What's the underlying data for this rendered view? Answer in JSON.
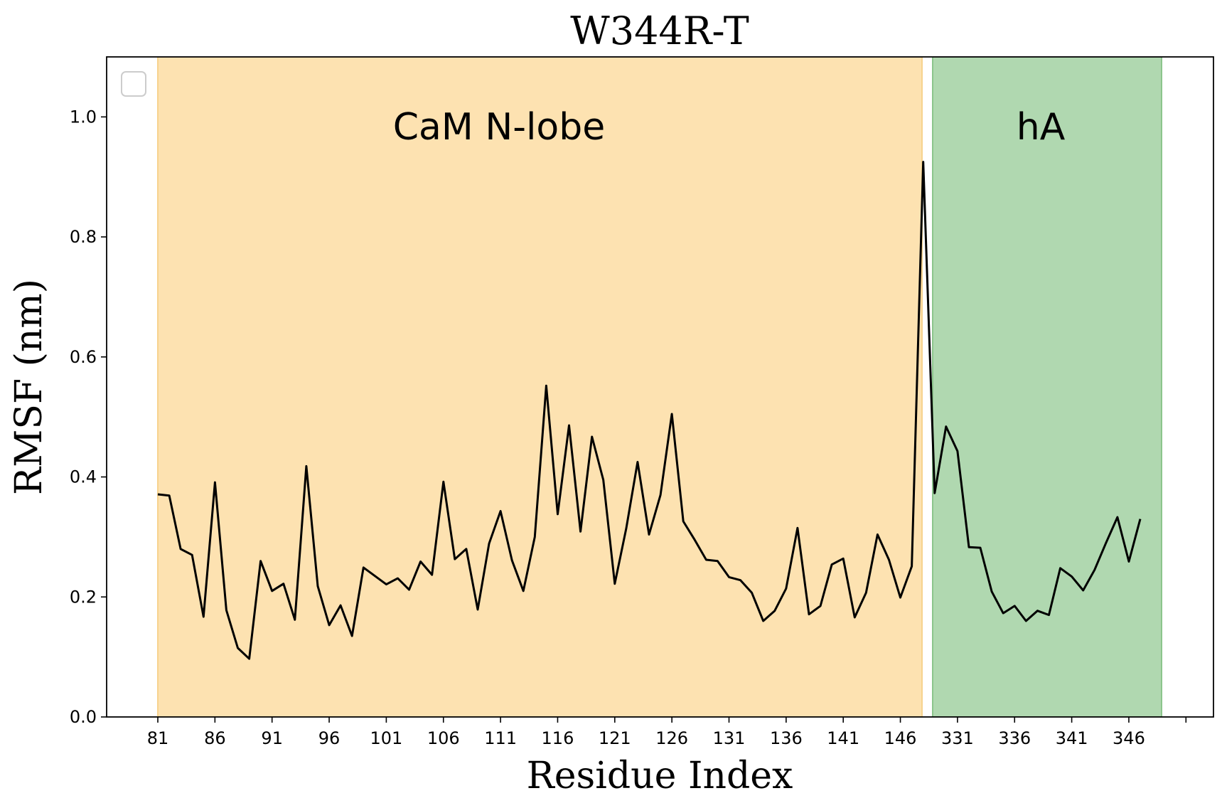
{
  "chart_data": {
    "type": "line",
    "title": "W344R-T",
    "xlabel": "Residue Index",
    "ylabel": "RMSF (nm)",
    "ylim": [
      0.0,
      1.1
    ],
    "yticks": [
      "0.0",
      "0.2",
      "0.4",
      "0.6",
      "0.8",
      "1.0"
    ],
    "xtick_labels": [
      "81",
      "86",
      "91",
      "96",
      "101",
      "106",
      "111",
      "116",
      "121",
      "126",
      "131",
      "136",
      "141",
      "146",
      "331",
      "336",
      "341",
      "346",
      ""
    ],
    "regions": [
      {
        "label": "CaM N-lobe",
        "color": "#fde2b1",
        "edge": "#f7d38e",
        "from": "81",
        "to": "148"
      },
      {
        "label": "hA",
        "color": "#b0d8b0",
        "edge": "#8cc58c",
        "from": "329",
        "to": "349"
      }
    ],
    "legend": {
      "placement": "upper-left",
      "entries": []
    },
    "series": [
      {
        "color": "#000000",
        "x": [
          "81",
          "82",
          "83",
          "84",
          "85",
          "86",
          "87",
          "88",
          "89",
          "90",
          "91",
          "92",
          "93",
          "94",
          "95",
          "96",
          "97",
          "98",
          "99",
          "100",
          "101",
          "102",
          "103",
          "104",
          "105",
          "106",
          "107",
          "108",
          "109",
          "110",
          "111",
          "112",
          "113",
          "114",
          "115",
          "116",
          "117",
          "118",
          "119",
          "120",
          "121",
          "122",
          "123",
          "124",
          "125",
          "126",
          "127",
          "128",
          "129",
          "130",
          "131",
          "132",
          "133",
          "134",
          "135",
          "136",
          "137",
          "138",
          "139",
          "140",
          "141",
          "142",
          "143",
          "144",
          "145",
          "146",
          "147",
          "329",
          "330",
          "331",
          "332",
          "333",
          "334",
          "335",
          "336",
          "337",
          "338",
          "339",
          "340",
          "341",
          "342",
          "343",
          "344",
          "345",
          "346",
          "347",
          "348"
        ],
        "values": [
          0.371,
          0.369,
          0.28,
          0.27,
          0.167,
          0.391,
          0.178,
          0.115,
          0.097,
          0.26,
          0.21,
          0.222,
          0.162,
          0.418,
          0.218,
          0.153,
          0.186,
          0.135,
          0.249,
          0.235,
          0.221,
          0.231,
          0.212,
          0.259,
          0.237,
          0.392,
          0.263,
          0.28,
          0.179,
          0.289,
          0.343,
          0.261,
          0.21,
          0.3,
          0.552,
          0.338,
          0.486,
          0.309,
          0.467,
          0.395,
          0.222,
          0.314,
          0.425,
          0.304,
          0.37,
          0.505,
          0.326,
          0.295,
          0.262,
          0.26,
          0.233,
          0.228,
          0.207,
          0.16,
          0.177,
          0.214,
          0.315,
          0.171,
          0.185,
          0.254,
          0.264,
          0.166,
          0.207,
          0.304,
          0.262,
          0.199,
          0.251,
          0.925,
          0.373,
          0.484,
          0.443,
          0.283,
          0.282,
          0.209,
          0.173,
          0.185,
          0.16,
          0.177,
          0.17,
          0.248,
          0.234,
          0.211,
          0.245,
          0.29,
          0.333,
          0.259,
          0.33
        ]
      }
    ]
  }
}
